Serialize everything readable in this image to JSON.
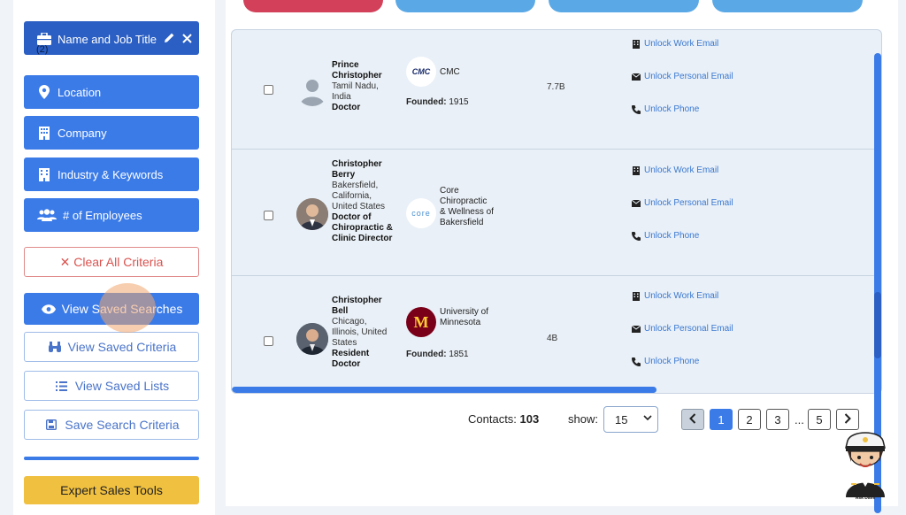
{
  "sidebar": {
    "name_job": {
      "label": "Name and Job Title",
      "count": "(2)"
    },
    "location": "Location",
    "company": "Company",
    "industry": "Industry & Keywords",
    "employees": "# of Employees",
    "clear": "✕ Clear All Criteria",
    "view_saved_searches": "View Saved Searches",
    "view_saved_criteria": "View Saved Criteria",
    "view_saved_lists": "View Saved Lists",
    "save_search_criteria": "Save Search Criteria",
    "expert_sales_tools": "Expert Sales Tools"
  },
  "links": {
    "work_email": "Unlock Work Email",
    "personal_email": "Unlock Personal Email",
    "phone": "Unlock Phone"
  },
  "rows": [
    {
      "name": "Prince Christopher",
      "location": "Tamil Nadu, India",
      "title": "Doctor",
      "company_logo": "CMC",
      "company": "CMC",
      "founded_label": "Founded:",
      "founded": "1915",
      "revenue": "7.7B"
    },
    {
      "name": "Christopher Berry",
      "location": "Bakersfield, California, United States",
      "title": "Doctor of Chiropractic & Clinic Director",
      "company_logo": "core",
      "company": "Core Chiropractic & Wellness of Bakersfield",
      "founded_label": "",
      "founded": "",
      "revenue": ""
    },
    {
      "name": "Christopher Bell",
      "location": "Chicago, Illinois, United States",
      "title": "Resident Doctor",
      "company_logo": "M",
      "company": "University of Minnesota",
      "founded_label": "Founded:",
      "founded": "1851",
      "revenue": "4B"
    }
  ],
  "pagination": {
    "contacts_label": "Contacts:",
    "contacts_count": "103",
    "show_label": "show:",
    "page_size": "15",
    "pages": [
      "1",
      "2",
      "3",
      "5"
    ],
    "ellipsis": "...",
    "current": "1"
  },
  "mascot_caption": "Ask Dave",
  "colors": {
    "accent": "#3b7be8",
    "accent_dark": "#2b5fc4",
    "highlight": "#f0a56e",
    "tab_red": "#d2405a",
    "tab_blue": "#5aa9e6"
  }
}
